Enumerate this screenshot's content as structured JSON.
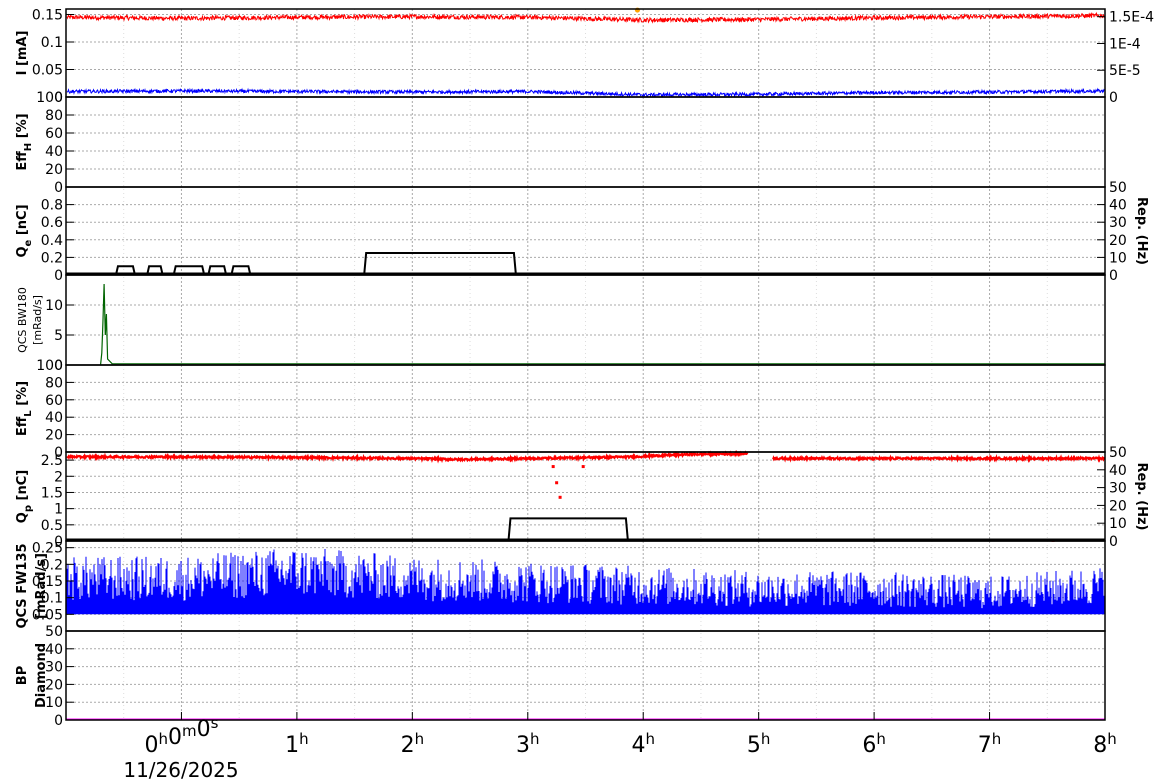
{
  "chart_data": {
    "type": "line",
    "date_label": "11/26/2025",
    "x_axis": {
      "range_hours": [
        -1,
        8
      ],
      "tick_labels": [
        "0h0m0s",
        "1h",
        "2h",
        "3h",
        "4h",
        "5h",
        "6h",
        "7h",
        "8h"
      ]
    },
    "panels": [
      {
        "id": "current",
        "ylabel": "I [mA]",
        "ylim": [
          0,
          0.16
        ],
        "yticks": [
          "0",
          "0.05",
          "0.1",
          "0.15"
        ],
        "y2ticks": [
          "0",
          "5E-5",
          "1E-4",
          "1.5E-4"
        ],
        "y2label": "",
        "series": [
          {
            "color": "#ff0000",
            "x": [
              -1,
              0,
              1,
              2,
              3,
              4,
              5,
              6,
              7,
              8
            ],
            "y": [
              0.145,
              0.143,
              0.145,
              0.146,
              0.145,
              0.14,
              0.141,
              0.144,
              0.146,
              0.148
            ]
          },
          {
            "color": "#0000ff",
            "x": [
              -1,
              0,
              1,
              2,
              3,
              4,
              5,
              6,
              7,
              8
            ],
            "y": [
              0.01,
              0.011,
              0.01,
              0.009,
              0.01,
              0.004,
              0.005,
              0.008,
              0.009,
              0.011
            ]
          }
        ],
        "markers": [
          {
            "color": "#ffa500",
            "x": 3.95,
            "y": 0.158
          }
        ]
      },
      {
        "id": "eff_h",
        "ylabel": "Eff",
        "ylabel_sub": "H",
        "ylabel_unit": "[%]",
        "ylim": [
          0,
          100
        ],
        "yticks": [
          "0",
          "20",
          "40",
          "60",
          "80",
          "100"
        ]
      },
      {
        "id": "qe",
        "ylabel": "Q",
        "ylabel_sub": "e",
        "ylabel_unit": "[nC]",
        "ylim": [
          0,
          1
        ],
        "yticks": [
          "0",
          "0.2",
          "0.4",
          "0.6",
          "0.8"
        ],
        "y2label": "Rep. (Hz)",
        "y2ticks": [
          "0",
          "10",
          "20",
          "30",
          "40",
          "50"
        ],
        "pulses": [
          {
            "x0": -0.55,
            "x1": -0.42,
            "y": 0.1
          },
          {
            "x0": -0.28,
            "x1": -0.18,
            "y": 0.1
          },
          {
            "x0": -0.05,
            "x1": 0.18,
            "y": 0.1
          },
          {
            "x0": 0.25,
            "x1": 0.37,
            "y": 0.1
          },
          {
            "x0": 0.45,
            "x1": 0.58,
            "y": 0.1
          },
          {
            "x0": 1.6,
            "x1": 2.88,
            "y": 0.25
          }
        ]
      },
      {
        "id": "qcs_bw180",
        "ylabel": "QCS BW180",
        "ylabel2": "[mRad/s]",
        "ylim": [
          0,
          15
        ],
        "yticks": [
          "0",
          "5",
          "10"
        ],
        "series": [
          {
            "color": "#006400",
            "x": [
              -0.7,
              -0.69,
              -0.68,
              -0.67,
              -0.66,
              -0.65,
              -0.64,
              -0.6,
              8
            ],
            "y": [
              0.1,
              2,
              7,
              13.5,
              5,
              8.5,
              1,
              0.2,
              0.2
            ]
          }
        ]
      },
      {
        "id": "eff_l",
        "ylabel": "Eff",
        "ylabel_sub": "L",
        "ylabel_unit": "[%]",
        "ylim": [
          0,
          100
        ],
        "yticks": [
          "0",
          "20",
          "40",
          "60",
          "80",
          "100"
        ]
      },
      {
        "id": "qp",
        "ylabel": "Q",
        "ylabel_sub": "p",
        "ylabel_unit": "[nC]",
        "ylim": [
          0,
          2.75
        ],
        "yticks": [
          "0",
          "0.5",
          "1",
          "1.5",
          "2",
          "2.5"
        ],
        "y2label": "Rep. (Hz)",
        "y2ticks": [
          "0",
          "10",
          "20",
          "30",
          "40",
          "50"
        ],
        "series": [
          {
            "color": "#ff0000",
            "x": [
              -1,
              0,
              1,
              2,
              2.4,
              3,
              3.9,
              4.4,
              4.9,
              5.1,
              6,
              7,
              8
            ],
            "y": [
              2.6,
              2.6,
              2.58,
              2.55,
              2.52,
              2.55,
              2.6,
              2.68,
              2.7,
              2.55,
              2.55,
              2.55,
              2.55
            ]
          }
        ],
        "gaps": [
          [
            4.9,
            5.12
          ]
        ],
        "outliers": [
          {
            "x": 3.22,
            "y": 2.3
          },
          {
            "x": 3.25,
            "y": 1.8
          },
          {
            "x": 3.28,
            "y": 1.35
          },
          {
            "x": 3.48,
            "y": 2.3
          },
          {
            "x": 7.55,
            "y": 0.02
          }
        ],
        "pulses": [
          {
            "x0": 2.85,
            "x1": 3.85,
            "y": 0.7
          }
        ]
      },
      {
        "id": "qcs_fw135",
        "ylabel": "QCS FW135",
        "ylabel2": "[mRad/s]",
        "ylim": [
          0,
          0.27
        ],
        "yticks": [
          "0.05",
          "0.1",
          "0.15",
          "0.2",
          "0.25"
        ],
        "series": [
          {
            "color": "#0000ff",
            "x": [
              -1,
              0,
              1,
              2,
              3,
              4,
              5,
              6,
              7,
              8
            ],
            "y": [
              0.15,
              0.15,
              0.17,
              0.15,
              0.14,
              0.13,
              0.12,
              0.12,
              0.11,
              0.13
            ]
          }
        ]
      },
      {
        "id": "bp_diamond",
        "ylabel": "BP",
        "ylabel2": "Diamond",
        "ylim": [
          0,
          50
        ],
        "yticks": [
          "0",
          "10",
          "20",
          "30",
          "40",
          "50"
        ],
        "series": [
          {
            "color": "#ff00ff",
            "x": [
              -1,
              8
            ],
            "y": [
              0.3,
              0.3
            ]
          }
        ]
      }
    ]
  }
}
